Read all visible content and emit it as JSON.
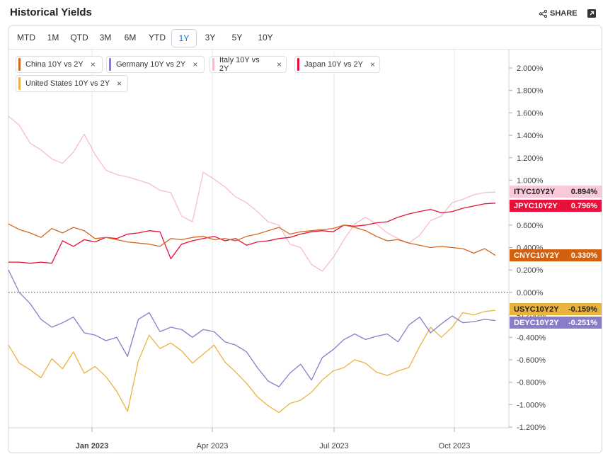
{
  "header": {
    "title": "Historical Yields",
    "share_label": "SHARE"
  },
  "tabs": [
    "MTD",
    "1M",
    "QTD",
    "3M",
    "6M",
    "YTD",
    "1Y",
    "3Y",
    "5Y",
    "10Y"
  ],
  "active_tab": "1Y",
  "legend": [
    {
      "label": "China 10Y vs 2Y",
      "color": "#d2691e"
    },
    {
      "label": "Germany 10Y vs 2Y",
      "color": "#8a7cc8"
    },
    {
      "label": "Italy 10Y vs 2Y",
      "color": "#f6bcd0"
    },
    {
      "label": "Japan 10Y vs 2Y",
      "color": "#e8103a"
    },
    {
      "label": "United States 10Y vs 2Y",
      "color": "#e9b340"
    }
  ],
  "series_labels": [
    {
      "code": "ITYC10Y2Y",
      "value": "0.894%",
      "bg": "#f9c9da",
      "fg": "#222222"
    },
    {
      "code": "JPYC10Y2Y",
      "value": "0.796%",
      "bg": "#e8103a",
      "fg": "#ffffff"
    },
    {
      "code": "CNYC10Y2Y",
      "value": "0.330%",
      "bg": "#d2600e",
      "fg": "#ffffff"
    },
    {
      "code": "USYC10Y2Y",
      "value": "-0.159%",
      "bg": "#e9b340",
      "fg": "#222222"
    },
    {
      "code": "DEYC10Y2Y",
      "value": "-0.251%",
      "bg": "#8a7cc8",
      "fg": "#ffffff"
    }
  ],
  "chart_data": {
    "type": "line",
    "x_ticks": [
      "Jan 2023",
      "Apr 2023",
      "Jul 2023",
      "Oct 2023"
    ],
    "y_ticks": [
      "2.000%",
      "1.800%",
      "1.600%",
      "1.400%",
      "1.200%",
      "1.000%",
      "0.800%",
      "0.600%",
      "0.400%",
      "0.200%",
      "0.000%",
      "-0.200%",
      "-0.400%",
      "-0.600%",
      "-0.800%",
      "-1.000%",
      "-1.200%"
    ],
    "ylim": [
      -1.2,
      2.0
    ],
    "x": [
      0,
      8,
      16,
      24,
      32,
      40,
      48,
      56,
      64,
      72,
      80,
      88,
      96,
      104,
      112,
      120,
      128,
      136,
      144,
      152,
      160,
      168,
      176,
      184,
      192,
      200,
      208,
      216,
      224,
      232,
      240,
      248,
      256,
      264,
      272,
      280,
      288,
      296,
      304,
      312,
      320,
      328,
      336,
      344,
      352,
      360
    ],
    "series": [
      {
        "name": "Italy 10Y vs 2Y",
        "color": "#f6bcd0",
        "values": [
          1.57,
          1.49,
          1.33,
          1.27,
          1.19,
          1.15,
          1.25,
          1.41,
          1.23,
          1.09,
          1.05,
          1.03,
          1.0,
          0.97,
          0.91,
          0.89,
          0.68,
          0.63,
          1.07,
          1.01,
          0.94,
          0.85,
          0.8,
          0.72,
          0.63,
          0.6,
          0.43,
          0.4,
          0.25,
          0.19,
          0.31,
          0.47,
          0.61,
          0.67,
          0.61,
          0.53,
          0.48,
          0.44,
          0.51,
          0.64,
          0.68,
          0.8,
          0.83,
          0.87,
          0.89,
          0.894
        ]
      },
      {
        "name": "Japan 10Y vs 2Y",
        "color": "#e8103a",
        "values": [
          0.27,
          0.27,
          0.26,
          0.27,
          0.26,
          0.46,
          0.41,
          0.47,
          0.45,
          0.49,
          0.48,
          0.52,
          0.53,
          0.55,
          0.54,
          0.3,
          0.43,
          0.46,
          0.48,
          0.5,
          0.46,
          0.48,
          0.42,
          0.45,
          0.46,
          0.48,
          0.49,
          0.52,
          0.54,
          0.55,
          0.54,
          0.6,
          0.59,
          0.6,
          0.62,
          0.63,
          0.67,
          0.7,
          0.72,
          0.74,
          0.71,
          0.72,
          0.75,
          0.77,
          0.79,
          0.796
        ]
      },
      {
        "name": "China 10Y vs 2Y",
        "color": "#d2691e",
        "values": [
          0.61,
          0.56,
          0.53,
          0.49,
          0.57,
          0.53,
          0.58,
          0.55,
          0.48,
          0.49,
          0.47,
          0.45,
          0.44,
          0.43,
          0.41,
          0.48,
          0.47,
          0.49,
          0.5,
          0.47,
          0.48,
          0.46,
          0.5,
          0.52,
          0.55,
          0.58,
          0.52,
          0.54,
          0.55,
          0.56,
          0.57,
          0.6,
          0.58,
          0.55,
          0.5,
          0.46,
          0.47,
          0.44,
          0.42,
          0.4,
          0.41,
          0.4,
          0.39,
          0.35,
          0.39,
          0.33
        ]
      },
      {
        "name": "United States 10Y vs 2Y",
        "color": "#e9b340",
        "values": [
          -0.47,
          -0.63,
          -0.69,
          -0.76,
          -0.59,
          -0.68,
          -0.53,
          -0.72,
          -0.66,
          -0.75,
          -0.88,
          -1.06,
          -0.61,
          -0.38,
          -0.5,
          -0.45,
          -0.52,
          -0.63,
          -0.55,
          -0.47,
          -0.62,
          -0.71,
          -0.81,
          -0.93,
          -1.01,
          -1.07,
          -0.99,
          -0.96,
          -0.89,
          -0.78,
          -0.7,
          -0.67,
          -0.6,
          -0.63,
          -0.71,
          -0.74,
          -0.7,
          -0.67,
          -0.48,
          -0.31,
          -0.4,
          -0.31,
          -0.18,
          -0.2,
          -0.17,
          -0.159
        ]
      },
      {
        "name": "Germany 10Y vs 2Y",
        "color": "#8a7cc8",
        "values": [
          0.2,
          0.0,
          -0.1,
          -0.24,
          -0.31,
          -0.27,
          -0.22,
          -0.36,
          -0.38,
          -0.43,
          -0.4,
          -0.57,
          -0.24,
          -0.18,
          -0.35,
          -0.31,
          -0.33,
          -0.4,
          -0.33,
          -0.35,
          -0.44,
          -0.47,
          -0.53,
          -0.67,
          -0.79,
          -0.84,
          -0.72,
          -0.64,
          -0.78,
          -0.58,
          -0.51,
          -0.42,
          -0.37,
          -0.42,
          -0.39,
          -0.37,
          -0.44,
          -0.29,
          -0.22,
          -0.36,
          -0.28,
          -0.21,
          -0.27,
          -0.26,
          -0.24,
          -0.251
        ]
      }
    ]
  }
}
